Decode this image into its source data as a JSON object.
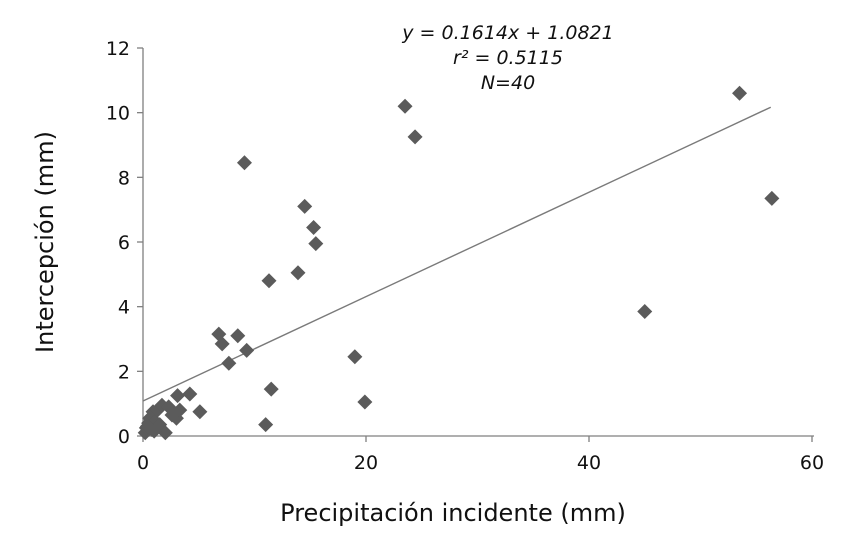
{
  "chart_data": {
    "type": "scatter",
    "title": "",
    "xlabel": "Precipitación incidente (mm)",
    "ylabel": "Intercepción (mm)",
    "xlim": [
      0,
      60
    ],
    "ylim": [
      0,
      12
    ],
    "xticks": [
      0,
      20,
      40,
      60
    ],
    "yticks": [
      0,
      2,
      4,
      6,
      8,
      10,
      12
    ],
    "grid": false,
    "marker": "diamond",
    "point_color": "#5b5b5b",
    "trendline_color": "#7a7a7a",
    "annotation": {
      "equation": "y = 0.1614x + 1.0821",
      "r2": "r² = 0.5115",
      "n": "N=40"
    },
    "trendline": {
      "slope": 0.1614,
      "intercept": 1.0821,
      "x_range": [
        0,
        56.3
      ]
    },
    "series": [
      {
        "name": "Intercepción",
        "points": [
          [
            0.2,
            0.1
          ],
          [
            0.3,
            0.25
          ],
          [
            0.5,
            0.4
          ],
          [
            0.6,
            0.55
          ],
          [
            0.8,
            0.2
          ],
          [
            0.9,
            0.75
          ],
          [
            1.1,
            0.45
          ],
          [
            1.3,
            0.8
          ],
          [
            1.5,
            0.35
          ],
          [
            1.7,
            0.95
          ],
          [
            2.0,
            0.1
          ],
          [
            2.3,
            0.9
          ],
          [
            3.0,
            0.55
          ],
          [
            3.1,
            1.25
          ],
          [
            3.3,
            0.8
          ],
          [
            4.2,
            1.3
          ],
          [
            5.1,
            0.75
          ],
          [
            6.8,
            3.15
          ],
          [
            7.1,
            2.85
          ],
          [
            7.7,
            2.25
          ],
          [
            8.5,
            3.1
          ],
          [
            9.1,
            8.45
          ],
          [
            9.3,
            2.65
          ],
          [
            11.0,
            0.35
          ],
          [
            11.3,
            4.8
          ],
          [
            11.5,
            1.45
          ],
          [
            13.9,
            5.05
          ],
          [
            14.5,
            7.1
          ],
          [
            15.3,
            6.45
          ],
          [
            15.5,
            5.95
          ],
          [
            19.0,
            2.45
          ],
          [
            19.9,
            1.05
          ],
          [
            23.5,
            10.2
          ],
          [
            24.4,
            9.25
          ],
          [
            45.0,
            3.85
          ],
          [
            53.5,
            10.6
          ],
          [
            56.4,
            7.35
          ],
          [
            0.4,
            0.3
          ],
          [
            1.0,
            0.15
          ],
          [
            2.6,
            0.65
          ]
        ]
      }
    ]
  }
}
